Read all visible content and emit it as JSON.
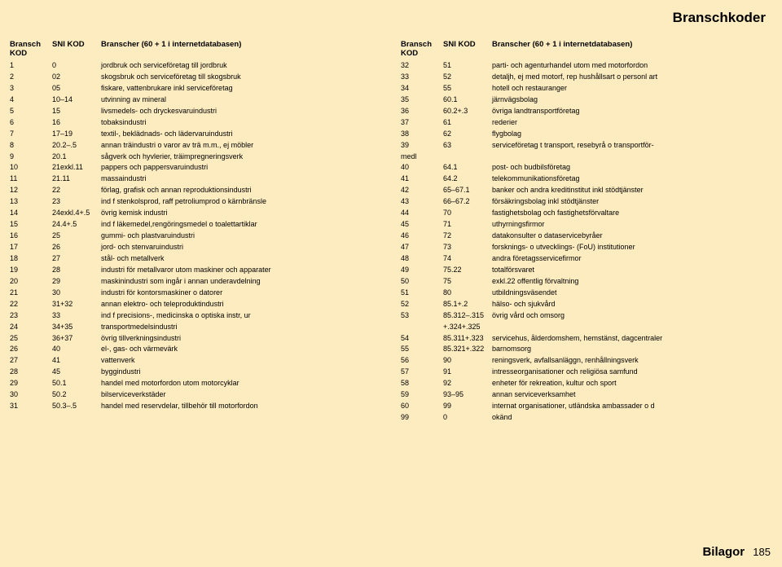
{
  "title": "Branschkoder",
  "title_fontsize": 17,
  "title_color": "#000000",
  "background_color": "#fdecc0",
  "header": {
    "c1": "Bransch KOD",
    "c2": "SNI KOD",
    "c3": "Branscher (60 + 1 i internetdatabasen)"
  },
  "footer": {
    "label": "Bilagor",
    "page": "185"
  },
  "left": [
    {
      "k": "1",
      "s": "0",
      "b": "jordbruk och serviceföretag till jordbruk"
    },
    {
      "k": "2",
      "s": "02",
      "b": "skogsbruk och serviceföretag till skogsbruk"
    },
    {
      "k": "3",
      "s": "05",
      "b": "fiskare, vattenbrukare inkl serviceföretag"
    },
    {
      "k": "4",
      "s": "10–14",
      "b": "utvinning av mineral"
    },
    {
      "k": "5",
      "s": "15",
      "b": "livsmedels- och dryckesvaruindustri"
    },
    {
      "k": "6",
      "s": "16",
      "b": "tobaksindustri"
    },
    {
      "k": "7",
      "s": "17–19",
      "b": "textil-, beklädnads- och lädervaruindustri"
    },
    {
      "k": "8",
      "s": "20.2–.5",
      "b": "annan träindustri o varor av trä m.m., ej möbler"
    },
    {
      "k": "9",
      "s": "20.1",
      "b": "sågverk och hyvlerier, träimpregneringsverk"
    },
    {
      "k": "10",
      "s": "21exkl.11",
      "b": "pappers och pappersvaruindustri"
    },
    {
      "k": "11",
      "s": "21.11",
      "b": "massaindustri"
    },
    {
      "k": "12",
      "s": "22",
      "b": "förlag, grafisk och annan reproduktionsindustri"
    },
    {
      "k": "13",
      "s": "23",
      "b": "ind f stenkolsprod, raff petroliumprod o kärnbränsle"
    },
    {
      "k": "14",
      "s": "24exkl.4+.5",
      "b": "övrig kemisk industri"
    },
    {
      "k": "15",
      "s": "24.4+.5",
      "b": "ind f läkemedel,rengöringsmedel o toalettartiklar"
    },
    {
      "k": "16",
      "s": "25",
      "b": "gummi- och plastvaruindustri"
    },
    {
      "k": "17",
      "s": "26",
      "b": "jord- och stenvaruindustri"
    },
    {
      "k": "18",
      "s": "27",
      "b": "stål- och metallverk"
    },
    {
      "k": "19",
      "s": "28",
      "b": "industri för metallvaror utom maskiner och apparater"
    },
    {
      "k": "20",
      "s": "29",
      "b": "maskinindustri som ingår i annan underavdelning"
    },
    {
      "k": "21",
      "s": "30",
      "b": "industri för kontorsmaskiner o datorer"
    },
    {
      "k": "22",
      "s": "31+32",
      "b": "annan elektro- och teleproduktindustri"
    },
    {
      "k": "23",
      "s": "33",
      "b": "ind f precisions-, medicinska o optiska instr, ur"
    },
    {
      "k": "24",
      "s": "34+35",
      "b": "transportmedelsindustri"
    },
    {
      "k": "25",
      "s": "36+37",
      "b": "övrig tillverkningsindustri"
    },
    {
      "k": "26",
      "s": "40",
      "b": "el-, gas- och värmevärk"
    },
    {
      "k": "27",
      "s": "41",
      "b": "vattenverk"
    },
    {
      "k": "28",
      "s": "45",
      "b": "byggindustri"
    },
    {
      "k": "29",
      "s": "50.1",
      "b": "handel med motorfordon utom motorcyklar"
    },
    {
      "k": "30",
      "s": "50.2",
      "b": "bilserviceverkstäder"
    },
    {
      "k": "31",
      "s": "50.3–.5",
      "b": "handel med reservdelar, tillbehör till motorfordon"
    }
  ],
  "right": [
    {
      "k": "32",
      "s": "51",
      "b": "parti- och agenturhandel utom med motorfordon"
    },
    {
      "k": "33",
      "s": "52",
      "b": "detaljh, ej med motorf, rep hushållsart o personl art"
    },
    {
      "k": "34",
      "s": "55",
      "b": "hotell och restauranger"
    },
    {
      "k": "35",
      "s": "60.1",
      "b": "järnvägsbolag"
    },
    {
      "k": "36",
      "s": "60.2+.3",
      "b": "övriga landtransportföretag"
    },
    {
      "k": "37",
      "s": "61",
      "b": "rederier"
    },
    {
      "k": "38",
      "s": "62",
      "b": "flygbolag"
    },
    {
      "k": "39",
      "s": "63",
      "b": "serviceföretag t transport, resebyrå o transportför-"
    },
    {
      "k": "medl",
      "s": "",
      "b": ""
    },
    {
      "k": "40",
      "s": "64.1",
      "b": "post- och budbilsföretag"
    },
    {
      "k": "41",
      "s": "64.2",
      "b": "telekommunikationsföretag"
    },
    {
      "k": "42",
      "s": "65–67.1",
      "b": "banker och andra kreditinstitut inkl stödtjänster"
    },
    {
      "k": "43",
      "s": "66–67.2",
      "b": "försäkringsbolag inkl stödtjänster"
    },
    {
      "k": "44",
      "s": "70",
      "b": "fastighetsbolag och fastighetsförvaltare"
    },
    {
      "k": "45",
      "s": "71",
      "b": "uthyrningsfirmor"
    },
    {
      "k": "46",
      "s": "72",
      "b": "datakonsulter o dataservicebyråer"
    },
    {
      "k": "47",
      "s": "73",
      "b": "forsknings- o utvecklings- (FoU) institutioner"
    },
    {
      "k": "48",
      "s": "74",
      "b": "andra företagsservicefirmor"
    },
    {
      "k": "49",
      "s": "75.22",
      "b": "totalförsvaret"
    },
    {
      "k": "50",
      "s": "75",
      "b": "exkl.22 offentlig förvaltning"
    },
    {
      "k": "51",
      "s": "80",
      "b": "utbildningsväsendet"
    },
    {
      "k": "52",
      "s": "85.1+.2",
      "b": "hälso- och sjukvård"
    },
    {
      "k": "53",
      "s": "85.312–.315 +.324+.325",
      "b": "övrig vård och omsorg"
    },
    {
      "k": "54",
      "s": "85.311+.323",
      "b": "servicehus, ålderdomshem, hemstänst, dagcentraler"
    },
    {
      "k": "55",
      "s": "85.321+.322",
      "b": "barnomsorg"
    },
    {
      "k": "56",
      "s": "90",
      "b": "reningsverk, avfallsanläggn, renhållningsverk"
    },
    {
      "k": "57",
      "s": "91",
      "b": "intresseorganisationer och religiösa samfund"
    },
    {
      "k": "58",
      "s": "92",
      "b": "enheter för rekreation, kultur och sport"
    },
    {
      "k": "59",
      "s": "93–95",
      "b": "annan serviceverksamhet"
    },
    {
      "k": "60",
      "s": "99",
      "b": "internat organisationer, utländska ambassader o d"
    },
    {
      "k": "99",
      "s": "0",
      "b": "okänd"
    }
  ]
}
